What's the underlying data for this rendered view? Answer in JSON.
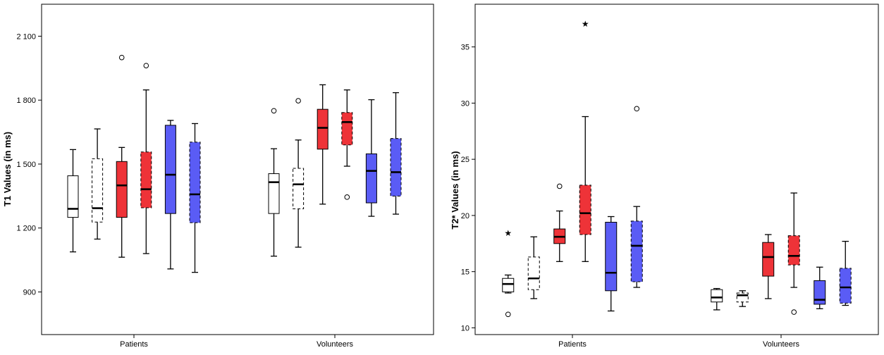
{
  "colors": {
    "white": "#ffffff",
    "red": "#ee3338",
    "blue": "#5a5cf5"
  },
  "chart_data": [
    {
      "type": "boxplot",
      "title": "",
      "xlabel": "",
      "ylabel": "T1 Values (in ms)",
      "ylim": [
        700,
        2250
      ],
      "yticks": [
        900,
        1200,
        1500,
        1800,
        2100
      ],
      "ytick_labels": [
        "900",
        "1 200",
        "1 500",
        "1 800",
        "2 100"
      ],
      "categories": [
        "Patients",
        "Volunteers"
      ],
      "series": [
        {
          "fill": "white",
          "dashed": false,
          "groups": [
            {
              "min": 1088,
              "q1": 1250,
              "median": 1290,
              "q3": 1445,
              "max": 1568,
              "outliers": [],
              "extremes": []
            },
            {
              "min": 1068,
              "q1": 1268,
              "median": 1415,
              "q3": 1455,
              "max": 1572,
              "outliers": [
                1750
              ],
              "extremes": []
            }
          ]
        },
        {
          "fill": "white",
          "dashed": true,
          "groups": [
            {
              "min": 1148,
              "q1": 1228,
              "median": 1293,
              "q3": 1525,
              "max": 1665,
              "outliers": [],
              "extremes": []
            },
            {
              "min": 1110,
              "q1": 1290,
              "median": 1405,
              "q3": 1480,
              "max": 1613,
              "outliers": [
                1797
              ],
              "extremes": []
            }
          ]
        },
        {
          "fill": "red",
          "dashed": false,
          "groups": [
            {
              "min": 1063,
              "q1": 1250,
              "median": 1400,
              "q3": 1512,
              "max": 1578,
              "outliers": [
                2000
              ],
              "extremes": []
            },
            {
              "min": 1312,
              "q1": 1570,
              "median": 1670,
              "q3": 1757,
              "max": 1872,
              "outliers": [],
              "extremes": []
            }
          ]
        },
        {
          "fill": "red",
          "dashed": true,
          "groups": [
            {
              "min": 1080,
              "q1": 1295,
              "median": 1382,
              "q3": 1557,
              "max": 1848,
              "outliers": [
                1962
              ],
              "extremes": []
            },
            {
              "min": 1490,
              "q1": 1590,
              "median": 1697,
              "q3": 1742,
              "max": 1848,
              "outliers": [
                1345
              ],
              "extremes": []
            }
          ]
        },
        {
          "fill": "blue",
          "dashed": false,
          "groups": [
            {
              "min": 1008,
              "q1": 1268,
              "median": 1450,
              "q3": 1682,
              "max": 1705,
              "outliers": [],
              "extremes": []
            },
            {
              "min": 1255,
              "q1": 1318,
              "median": 1468,
              "q3": 1548,
              "max": 1802,
              "outliers": [],
              "extremes": []
            }
          ]
        },
        {
          "fill": "blue",
          "dashed": true,
          "groups": [
            {
              "min": 992,
              "q1": 1225,
              "median": 1358,
              "q3": 1603,
              "max": 1690,
              "outliers": [],
              "extremes": []
            },
            {
              "min": 1265,
              "q1": 1350,
              "median": 1462,
              "q3": 1620,
              "max": 1835,
              "outliers": [],
              "extremes": []
            }
          ]
        }
      ]
    },
    {
      "type": "boxplot",
      "title": "",
      "xlabel": "",
      "ylabel": "T2* Values (in ms)",
      "ylim": [
        9.4,
        38.8
      ],
      "yticks": [
        10,
        15,
        20,
        25,
        30,
        35
      ],
      "ytick_labels": [
        "10",
        "15",
        "20",
        "25",
        "30",
        "35"
      ],
      "categories": [
        "Patients",
        "Volunteers"
      ],
      "series": [
        {
          "fill": "white",
          "dashed": false,
          "groups": [
            {
              "min": 13.1,
              "q1": 13.2,
              "median": 13.9,
              "q3": 14.4,
              "max": 14.7,
              "outliers": [
                11.2
              ],
              "extremes": [
                18.5
              ]
            },
            {
              "min": 11.6,
              "q1": 12.3,
              "median": 12.7,
              "q3": 13.4,
              "max": 13.5,
              "outliers": [],
              "extremes": []
            }
          ]
        },
        {
          "fill": "white",
          "dashed": true,
          "groups": [
            {
              "min": 12.6,
              "q1": 13.4,
              "median": 14.4,
              "q3": 16.3,
              "max": 18.1,
              "outliers": [],
              "extremes": []
            },
            {
              "min": 11.9,
              "q1": 12.3,
              "median": 12.9,
              "q3": 13.1,
              "max": 13.3,
              "outliers": [],
              "extremes": []
            }
          ]
        },
        {
          "fill": "red",
          "dashed": false,
          "groups": [
            {
              "min": 15.9,
              "q1": 17.5,
              "median": 18.1,
              "q3": 18.8,
              "max": 20.4,
              "outliers": [
                22.6
              ],
              "extremes": []
            },
            {
              "min": 12.6,
              "q1": 14.6,
              "median": 16.3,
              "q3": 17.6,
              "max": 18.3,
              "outliers": [],
              "extremes": []
            }
          ]
        },
        {
          "fill": "red",
          "dashed": true,
          "groups": [
            {
              "min": 15.9,
              "q1": 18.3,
              "median": 20.2,
              "q3": 22.7,
              "max": 28.8,
              "outliers": [],
              "extremes": [
                37.1
              ]
            },
            {
              "min": 13.6,
              "q1": 15.6,
              "median": 16.4,
              "q3": 18.2,
              "max": 22.0,
              "outliers": [
                11.4
              ],
              "extremes": []
            }
          ]
        },
        {
          "fill": "blue",
          "dashed": false,
          "groups": [
            {
              "min": 11.5,
              "q1": 13.3,
              "median": 14.9,
              "q3": 19.4,
              "max": 19.9,
              "outliers": [],
              "extremes": []
            },
            {
              "min": 11.7,
              "q1": 12.1,
              "median": 12.5,
              "q3": 14.2,
              "max": 15.4,
              "outliers": [],
              "extremes": []
            }
          ]
        },
        {
          "fill": "blue",
          "dashed": true,
          "groups": [
            {
              "min": 13.6,
              "q1": 14.1,
              "median": 17.3,
              "q3": 19.5,
              "max": 20.8,
              "outliers": [
                29.5
              ],
              "extremes": []
            },
            {
              "min": 12.0,
              "q1": 12.2,
              "median": 13.6,
              "q3": 15.3,
              "max": 17.7,
              "outliers": [],
              "extremes": []
            }
          ]
        }
      ]
    }
  ]
}
